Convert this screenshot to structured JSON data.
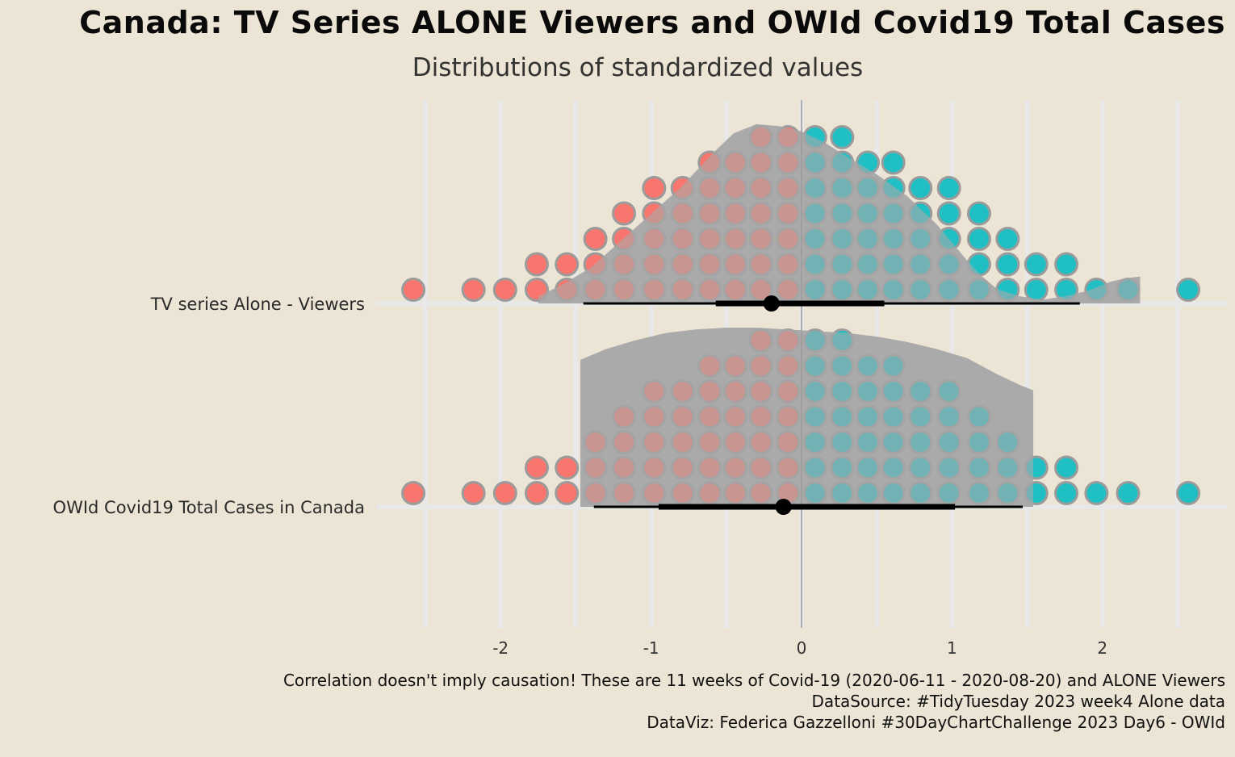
{
  "title": "Canada: TV Series ALONE Viewers and OWId Covid19 Total Cases",
  "subtitle": "Distributions of standardized values",
  "caption": {
    "line1": "Correlation doesn't imply causation! These are 11 weeks of Covid-19 (2020-06-11 - 2020-08-20) and ALONE Viewers",
    "line2": "DataSource: #TidyTuesday 2023 week4 Alone data",
    "line3": "DataViz: Federica Gazzelloni #30DayChartChallenge 2023 Day6 - OWId"
  },
  "colors": {
    "background": "#ece5d5",
    "negative": "#f8766d",
    "positive": "#1fbfc4",
    "dot_stroke": "#9b9b9b",
    "density": "#aaaaaa",
    "grid": "#e8e8e8",
    "interval": "#000000"
  },
  "chart_data": {
    "type": "dotplot_halfeye",
    "title": "Canada: TV Series ALONE Viewers and OWId Covid19 Total Cases",
    "subtitle": "Distributions of standardized values",
    "xlabel": "",
    "ylabel": "",
    "xlim": [
      -2.85,
      2.85
    ],
    "xticks": [
      -2,
      -1,
      0,
      1,
      2
    ],
    "tick_labels": [
      "-2",
      "-1",
      "0",
      "1",
      "2"
    ],
    "grid": true,
    "series": [
      {
        "name": "TV series Alone - Viewers",
        "dot_columns": [
          {
            "x": -2.58,
            "count": 1
          },
          {
            "x": -2.18,
            "count": 1
          },
          {
            "x": -1.97,
            "count": 1
          },
          {
            "x": -1.76,
            "count": 2
          },
          {
            "x": -1.56,
            "count": 2
          },
          {
            "x": -1.37,
            "count": 3
          },
          {
            "x": -1.18,
            "count": 4
          },
          {
            "x": -0.98,
            "count": 5
          },
          {
            "x": -0.79,
            "count": 5
          },
          {
            "x": -0.61,
            "count": 6
          },
          {
            "x": -0.44,
            "count": 6
          },
          {
            "x": -0.27,
            "count": 7
          },
          {
            "x": -0.09,
            "count": 7
          },
          {
            "x": 0.09,
            "count": 7
          },
          {
            "x": 0.27,
            "count": 7
          },
          {
            "x": 0.44,
            "count": 6
          },
          {
            "x": 0.61,
            "count": 6
          },
          {
            "x": 0.79,
            "count": 5
          },
          {
            "x": 0.98,
            "count": 5
          },
          {
            "x": 1.18,
            "count": 4
          },
          {
            "x": 1.37,
            "count": 3
          },
          {
            "x": 1.56,
            "count": 2
          },
          {
            "x": 1.76,
            "count": 2
          },
          {
            "x": 1.96,
            "count": 1
          },
          {
            "x": 2.17,
            "count": 1
          },
          {
            "x": 2.57,
            "count": 1
          }
        ],
        "density_x": [
          -1.75,
          -1.6,
          -1.4,
          -1.2,
          -1.0,
          -0.8,
          -0.6,
          -0.45,
          -0.3,
          -0.15,
          0.0,
          0.15,
          0.3,
          0.5,
          0.7,
          0.9,
          1.0,
          1.1,
          1.2,
          1.3,
          1.45,
          1.6,
          1.75,
          1.9,
          2.05,
          2.15,
          2.25
        ],
        "density_y": [
          0.04,
          0.1,
          0.2,
          0.35,
          0.5,
          0.65,
          0.83,
          0.95,
          1.0,
          0.99,
          0.96,
          0.9,
          0.82,
          0.72,
          0.6,
          0.44,
          0.34,
          0.24,
          0.15,
          0.08,
          0.04,
          0.02,
          0.04,
          0.07,
          0.12,
          0.14,
          0.15
        ],
        "median": -0.2,
        "interval_66": [
          -0.57,
          0.55
        ],
        "interval_95": [
          -1.45,
          1.85
        ]
      },
      {
        "name": "OWId Covid19 Total Cases in Canada",
        "dot_columns": [
          {
            "x": -2.58,
            "count": 1
          },
          {
            "x": -2.18,
            "count": 1
          },
          {
            "x": -1.97,
            "count": 1
          },
          {
            "x": -1.76,
            "count": 2
          },
          {
            "x": -1.56,
            "count": 2
          },
          {
            "x": -1.37,
            "count": 3
          },
          {
            "x": -1.18,
            "count": 4
          },
          {
            "x": -0.98,
            "count": 5
          },
          {
            "x": -0.79,
            "count": 5
          },
          {
            "x": -0.61,
            "count": 6
          },
          {
            "x": -0.44,
            "count": 6
          },
          {
            "x": -0.27,
            "count": 7
          },
          {
            "x": -0.09,
            "count": 7
          },
          {
            "x": 0.09,
            "count": 7
          },
          {
            "x": 0.27,
            "count": 7
          },
          {
            "x": 0.44,
            "count": 6
          },
          {
            "x": 0.61,
            "count": 6
          },
          {
            "x": 0.79,
            "count": 5
          },
          {
            "x": 0.98,
            "count": 5
          },
          {
            "x": 1.18,
            "count": 4
          },
          {
            "x": 1.37,
            "count": 3
          },
          {
            "x": 1.56,
            "count": 2
          },
          {
            "x": 1.76,
            "count": 2
          },
          {
            "x": 1.96,
            "count": 1
          },
          {
            "x": 2.17,
            "count": 1
          },
          {
            "x": 2.57,
            "count": 1
          }
        ],
        "density_x": [
          -1.47,
          -1.3,
          -1.1,
          -0.9,
          -0.7,
          -0.5,
          -0.3,
          -0.1,
          0.1,
          0.3,
          0.5,
          0.7,
          0.9,
          1.1,
          1.3,
          1.45,
          1.54
        ],
        "density_y": [
          0.82,
          0.88,
          0.93,
          0.97,
          0.99,
          1.0,
          1.0,
          0.99,
          0.98,
          0.97,
          0.95,
          0.92,
          0.88,
          0.83,
          0.74,
          0.68,
          0.65
        ],
        "median": -0.12,
        "interval_66": [
          -0.95,
          1.02
        ],
        "interval_95": [
          -1.38,
          1.47
        ]
      }
    ]
  }
}
